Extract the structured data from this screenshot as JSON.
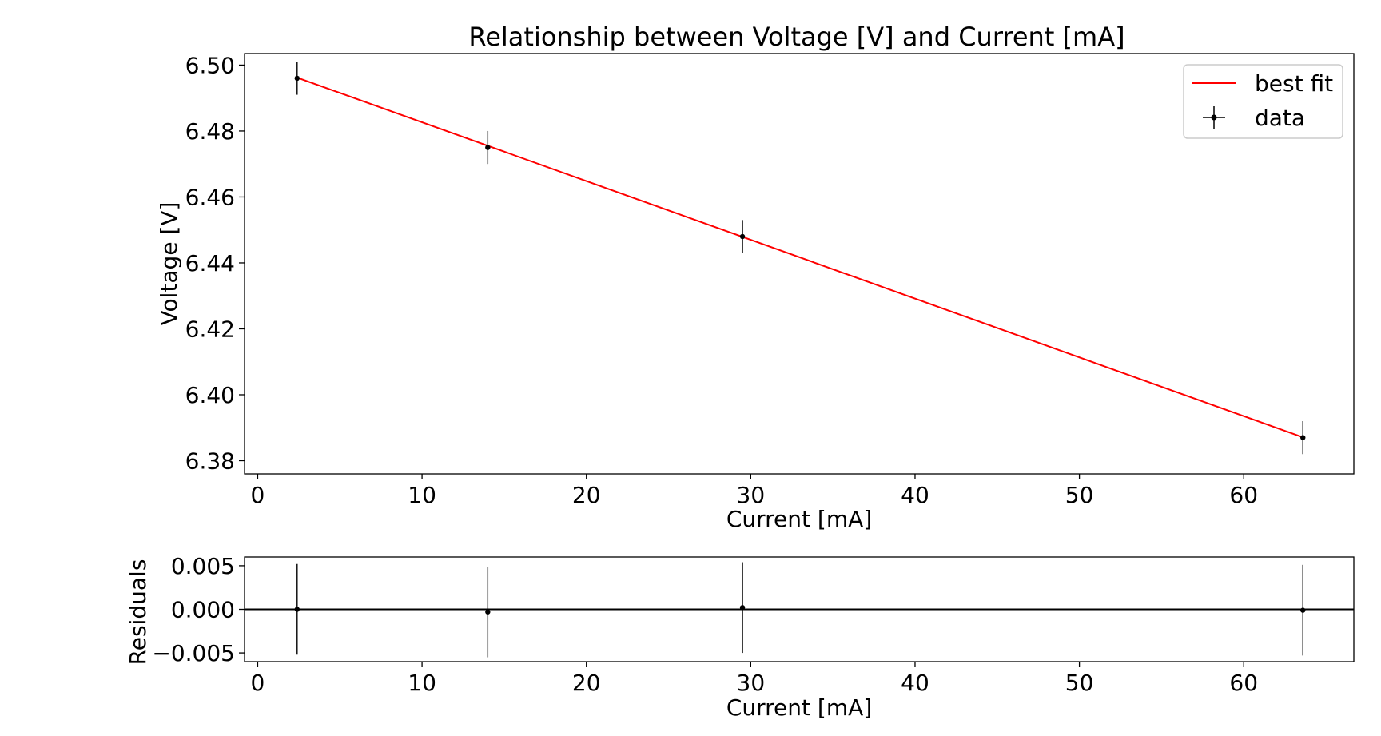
{
  "chart_data": [
    {
      "type": "scatter",
      "title": "Relationship between Voltage [V] and Current [mA]",
      "xlabel": "Current [mA]",
      "ylabel": "Voltage [V]",
      "xlim": [
        -0.8,
        66.7
      ],
      "ylim": [
        6.376,
        6.5035
      ],
      "xticks": [
        0,
        10,
        20,
        30,
        40,
        50,
        60
      ],
      "yticks": [
        6.38,
        6.4,
        6.42,
        6.44,
        6.46,
        6.48,
        6.5
      ],
      "ytick_labels": [
        "6.38",
        "6.40",
        "6.42",
        "6.44",
        "6.46",
        "6.48",
        "6.50"
      ],
      "grid": false,
      "legend_position": "top-right",
      "legend": [
        {
          "label": "best fit",
          "kind": "line",
          "color": "#ff0000"
        },
        {
          "label": "data",
          "kind": "errorbar",
          "color": "#000000"
        }
      ],
      "series": [
        {
          "name": "data",
          "kind": "errorbar",
          "color": "#000000",
          "x": [
            2.4,
            14.0,
            29.5,
            63.6
          ],
          "y": [
            6.496,
            6.475,
            6.448,
            6.387
          ],
          "yerr": [
            0.005,
            0.005,
            0.005,
            0.005
          ]
        },
        {
          "name": "best fit",
          "kind": "line",
          "color": "#ff0000",
          "x": [
            2.4,
            63.6
          ],
          "y": [
            6.4962,
            6.3871
          ]
        }
      ]
    },
    {
      "type": "scatter",
      "title": "",
      "xlabel": "Current [mA]",
      "ylabel": "Residuals",
      "xlim": [
        -0.8,
        66.7
      ],
      "ylim": [
        -0.006,
        0.006
      ],
      "xticks": [
        0,
        10,
        20,
        30,
        40,
        50,
        60
      ],
      "yticks": [
        -0.005,
        0.0,
        0.005
      ],
      "ytick_labels": [
        "−0.005",
        "0.000",
        "0.005"
      ],
      "grid": false,
      "zero_line": true,
      "series": [
        {
          "kind": "errorbar",
          "color": "#000000",
          "x": [
            2.4,
            14.0,
            29.5,
            63.6
          ],
          "y": [
            0.0,
            -0.0003,
            0.0002,
            -0.0001
          ],
          "yerr": [
            0.0052,
            0.0052,
            0.0052,
            0.0052
          ]
        }
      ]
    }
  ]
}
